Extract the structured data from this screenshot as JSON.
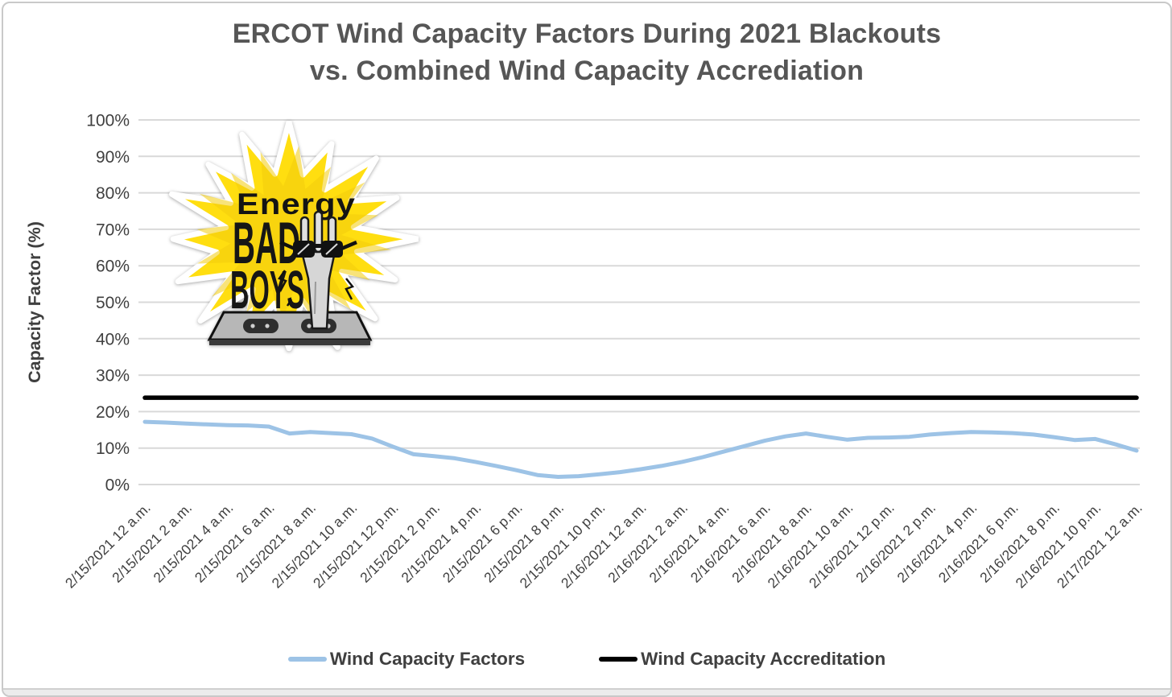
{
  "title": {
    "line1": "ERCOT Wind Capacity Factors During 2021 Blackouts",
    "line2": "vs. Combined Wind Capacity Accrediation"
  },
  "y_axis": {
    "title": "Capacity Factor (%)",
    "tick_labels": [
      "100%",
      "90%",
      "80%",
      "70%",
      "60%",
      "50%",
      "40%",
      "30%",
      "20%",
      "10%",
      "0%"
    ],
    "tick_values": [
      100,
      90,
      80,
      70,
      60,
      50,
      40,
      30,
      20,
      10,
      0
    ]
  },
  "logo": {
    "word1": "Energy",
    "word2": "BAD",
    "word3": "BOYS",
    "star_color": "#FFDE10",
    "star_inner_color": "#F2CC0C"
  },
  "legend": [
    {
      "label": "Wind Capacity Factors",
      "color": "#9DC3E6"
    },
    {
      "label": "Wind Capacity Accreditation",
      "color": "#000000"
    }
  ],
  "chart_data": {
    "type": "line",
    "title": "ERCOT Wind Capacity Factors During 2021 Blackouts vs. Combined Wind Capacity Accrediation",
    "xlabel": "",
    "ylabel": "Capacity Factor (%)",
    "ylim": [
      0,
      100
    ],
    "y_tick_step": 10,
    "y_tick_format": "percent",
    "grid": "horizontal-only",
    "legend_position": "bottom",
    "x_tick_labels": [
      "2/15/2021 12 a.m.",
      "2/15/2021 2 a.m.",
      "2/15/2021 4 a.m.",
      "2/15/2021 6 a.m.",
      "2/15/2021 8 a.m.",
      "2/15/2021 10 a.m.",
      "2/15/2021 12 p.m.",
      "2/15/2021 2 p.m.",
      "2/15/2021 4 p.m.",
      "2/15/2021 6 p.m.",
      "2/15/2021 8 p.m.",
      "2/15/2021 10 p.m.",
      "2/16/2021 12 a.m.",
      "2/16/2021 2 a.m.",
      "2/16/2021 4 a.m.",
      "2/16/2021 6 a.m.",
      "2/16/2021 8 a.m.",
      "2/16/2021 10 a.m.",
      "2/16/2021 12 p.m.",
      "2/16/2021 2 p.m.",
      "2/16/2021 4 p.m.",
      "2/16/2021 6 p.m.",
      "2/16/2021 8 p.m.",
      "2/16/2021 10 p.m.",
      "2/17/2021 12 a.m."
    ],
    "x_tick_interval": "2 hours",
    "data_point_interval": "1 hour",
    "series": [
      {
        "name": "Wind Capacity Factors",
        "color": "#9DC3E6",
        "values": [
          17.2,
          17.0,
          16.7,
          16.5,
          16.3,
          16.2,
          15.9,
          14.0,
          14.4,
          14.1,
          13.8,
          12.6,
          10.4,
          8.3,
          7.8,
          7.2,
          6.2,
          5.1,
          3.9,
          2.6,
          2.1,
          2.3,
          2.8,
          3.4,
          4.2,
          5.1,
          6.2,
          7.5,
          9.0,
          10.5,
          12.0,
          13.2,
          14.0,
          13.1,
          12.3,
          12.8,
          12.9,
          13.1,
          13.7,
          14.1,
          14.4,
          14.3,
          14.1,
          13.7,
          13.0,
          12.2,
          12.5,
          11.0,
          9.3
        ]
      },
      {
        "name": "Wind Capacity Accreditation",
        "color": "#000000",
        "constant": 23.8
      }
    ]
  }
}
